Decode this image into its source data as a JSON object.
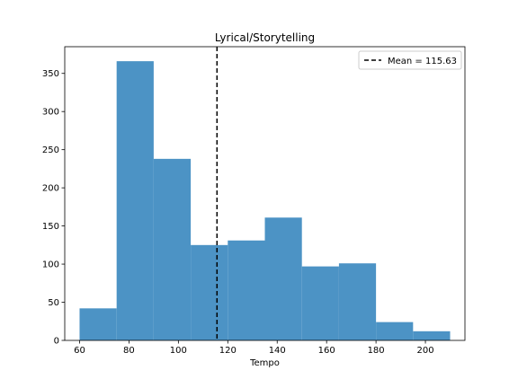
{
  "chart_data": {
    "type": "bar",
    "title": "Lyrical/Storytelling",
    "xlabel": "Tempo",
    "ylabel": "",
    "xlim": [
      54,
      216
    ],
    "ylim": [
      0,
      385
    ],
    "x_ticks": [
      60,
      80,
      100,
      120,
      140,
      160,
      180,
      200
    ],
    "y_ticks": [
      0,
      50,
      100,
      150,
      200,
      250,
      300,
      350
    ],
    "bin_edges": [
      60,
      75,
      90,
      105,
      120,
      135,
      150,
      165,
      180,
      195,
      210
    ],
    "values": [
      42,
      366,
      238,
      125,
      131,
      161,
      97,
      101,
      24,
      12
    ],
    "bar_color": "#4c93c5",
    "mean_line": {
      "value": 115.63,
      "label": "Mean = 115.63",
      "color": "#000000",
      "style": "dashed"
    },
    "legend_position": "upper right",
    "grid": false
  }
}
